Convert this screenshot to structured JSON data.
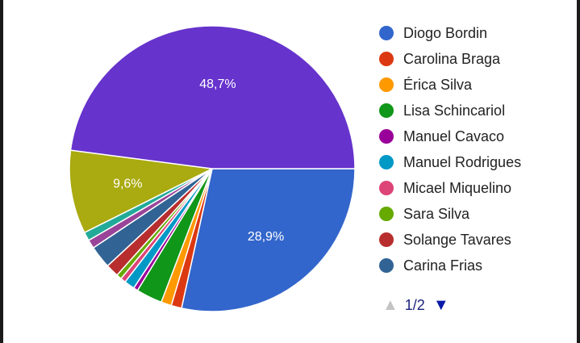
{
  "chart_data": {
    "type": "pie",
    "slices": [
      {
        "label": "Diogo Bordin",
        "value": 28.9,
        "color": "#3366cc",
        "data_label": "28,9%"
      },
      {
        "label": "Carolina Braga",
        "value": 1.2,
        "color": "#dc3912",
        "data_label": ""
      },
      {
        "label": "Érica Silva",
        "value": 1.2,
        "color": "#ff9900",
        "data_label": ""
      },
      {
        "label": "Lisa Schincariol",
        "value": 3.0,
        "color": "#109618",
        "data_label": ""
      },
      {
        "label": "Manuel Cavaco",
        "value": 0.5,
        "color": "#990099",
        "data_label": ""
      },
      {
        "label": "Manuel Rodrigues",
        "value": 1.2,
        "color": "#0099c6",
        "data_label": ""
      },
      {
        "label": "Micael Miquelino",
        "value": 0.6,
        "color": "#dd4477",
        "data_label": ""
      },
      {
        "label": "Sara Silva",
        "value": 0.6,
        "color": "#66aa00",
        "data_label": ""
      },
      {
        "label": "Solange Tavares",
        "value": 1.5,
        "color": "#b82e2e",
        "data_label": ""
      },
      {
        "label": "Carina Frias",
        "value": 2.6,
        "color": "#316395",
        "data_label": ""
      },
      {
        "label": "",
        "value": 1.0,
        "color": "#994499",
        "data_label": ""
      },
      {
        "label": "",
        "value": 1.0,
        "color": "#22aa99",
        "data_label": ""
      },
      {
        "label": "",
        "value": 9.6,
        "color": "#aaaa11",
        "data_label": "9,6%"
      },
      {
        "label": "",
        "value": 48.7,
        "color": "#6633cc",
        "data_label": "48,7%"
      }
    ],
    "legend_position": "right"
  },
  "legend": {
    "items": [
      {
        "label": "Diogo Bordin",
        "color": "#3366cc"
      },
      {
        "label": "Carolina Braga",
        "color": "#dc3912"
      },
      {
        "label": "Érica Silva",
        "color": "#ff9900"
      },
      {
        "label": "Lisa Schincariol",
        "color": "#109618"
      },
      {
        "label": "Manuel Cavaco",
        "color": "#990099"
      },
      {
        "label": "Manuel Rodrigues",
        "color": "#0099c6"
      },
      {
        "label": "Micael Miquelino",
        "color": "#dd4477"
      },
      {
        "label": "Sara Silva",
        "color": "#66aa00"
      },
      {
        "label": "Solange Tavares",
        "color": "#b82e2e"
      },
      {
        "label": "Carina Frias",
        "color": "#316395"
      }
    ]
  },
  "pager": {
    "prev_icon": "triangle-up-icon",
    "next_icon": "triangle-down-icon",
    "page_text": "1/2"
  }
}
